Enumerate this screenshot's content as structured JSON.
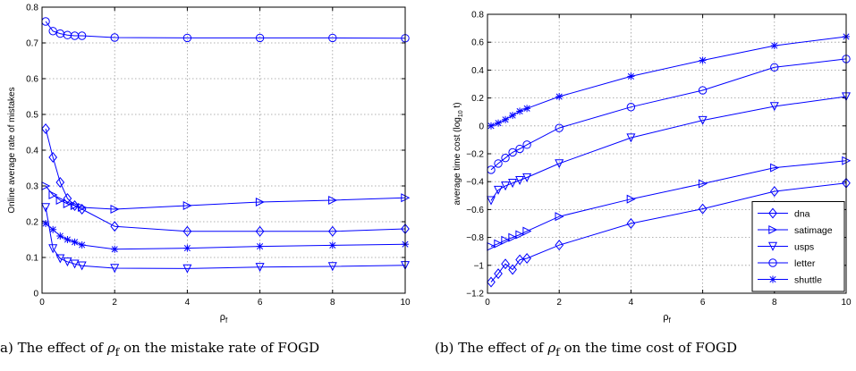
{
  "captions": {
    "a_prefix": "a) The effect of ",
    "a_symbol": "ρ",
    "a_sub": "f",
    "a_suffix": " on the mistake rate of FOGD",
    "b_prefix": "(b) The effect of ",
    "b_symbol": "ρ",
    "b_sub": "f",
    "b_suffix": " on the time cost of FOGD"
  },
  "colors": {
    "series": "#0000ff",
    "grid": "#999999",
    "axis": "#000000"
  },
  "chart_data": [
    {
      "type": "line",
      "title": "",
      "xlabel": "ρ",
      "xlabel_sub": "f",
      "ylabel": "Online average rate of mistakes",
      "xlim": [
        0,
        10
      ],
      "ylim": [
        0,
        0.8
      ],
      "xticks": [
        0,
        2,
        4,
        6,
        8,
        10
      ],
      "yticks": [
        0,
        0.1,
        0.2,
        0.3,
        0.4,
        0.5,
        0.6,
        0.7,
        0.8
      ],
      "ytick_labels": [
        "0",
        "0.1",
        "0.2",
        "0.3",
        "0.4",
        "0.5",
        "0.6",
        "0.7",
        "0.8"
      ],
      "grid": true,
      "legend": null,
      "series": [
        {
          "name": "dna",
          "marker": "diamond",
          "x": [
            0.1,
            0.3,
            0.5,
            0.7,
            0.9,
            1.1,
            2,
            4,
            6,
            8,
            10
          ],
          "y": [
            0.46,
            0.38,
            0.31,
            0.265,
            0.245,
            0.235,
            0.187,
            0.173,
            0.173,
            0.173,
            0.18
          ]
        },
        {
          "name": "satimage",
          "marker": "triangle-right",
          "x": [
            0.1,
            0.3,
            0.5,
            0.7,
            0.9,
            1.1,
            2,
            4,
            6,
            8,
            10
          ],
          "y": [
            0.3,
            0.275,
            0.26,
            0.25,
            0.245,
            0.24,
            0.235,
            0.245,
            0.255,
            0.26,
            0.267
          ]
        },
        {
          "name": "usps",
          "marker": "triangle-down",
          "x": [
            0.1,
            0.3,
            0.5,
            0.7,
            0.9,
            1.1,
            2,
            4,
            6,
            8,
            10
          ],
          "y": [
            0.24,
            0.125,
            0.097,
            0.088,
            0.082,
            0.077,
            0.07,
            0.069,
            0.073,
            0.075,
            0.078
          ]
        },
        {
          "name": "letter",
          "marker": "circle",
          "x": [
            0.1,
            0.3,
            0.5,
            0.7,
            0.9,
            1.1,
            2,
            4,
            6,
            8,
            10
          ],
          "y": [
            0.76,
            0.733,
            0.726,
            0.722,
            0.72,
            0.72,
            0.715,
            0.714,
            0.714,
            0.714,
            0.713
          ]
        },
        {
          "name": "shuttle",
          "marker": "star",
          "x": [
            0.1,
            0.3,
            0.5,
            0.7,
            0.9,
            1.1,
            2,
            4,
            6,
            8,
            10
          ],
          "y": [
            0.195,
            0.178,
            0.16,
            0.15,
            0.143,
            0.135,
            0.123,
            0.126,
            0.131,
            0.134,
            0.137
          ]
        }
      ]
    },
    {
      "type": "line",
      "title": "",
      "xlabel": "ρ",
      "xlabel_sub": "f",
      "ylabel_prefix": "average time cost (log",
      "ylabel_sub": "10",
      "ylabel_suffix": " t)",
      "xlim": [
        0,
        10
      ],
      "ylim": [
        -1.2,
        0.8
      ],
      "xticks": [
        0,
        2,
        4,
        6,
        8,
        10
      ],
      "yticks": [
        -1.2,
        -1,
        -0.8,
        -0.6,
        -0.4,
        -0.2,
        0,
        0.2,
        0.4,
        0.6,
        0.8
      ],
      "ytick_labels": [
        "−1.2",
        "−1",
        "−0.8",
        "−0.6",
        "−0.4",
        "−0.2",
        "0",
        "0.2",
        "0.4",
        "0.6",
        "0.8"
      ],
      "grid": true,
      "legend": "bottom-right",
      "series": [
        {
          "name": "dna",
          "marker": "diamond",
          "x": [
            0.1,
            0.3,
            0.5,
            0.7,
            0.9,
            1.1,
            2,
            4,
            6,
            8,
            10
          ],
          "y": [
            -1.12,
            -1.06,
            -0.99,
            -1.03,
            -0.96,
            -0.95,
            -0.855,
            -0.7,
            -0.595,
            -0.47,
            -0.41
          ]
        },
        {
          "name": "satimage",
          "marker": "triangle-right",
          "x": [
            0.1,
            0.3,
            0.5,
            0.7,
            0.9,
            1.1,
            2,
            4,
            6,
            8,
            10
          ],
          "y": [
            -0.865,
            -0.845,
            -0.82,
            -0.8,
            -0.78,
            -0.755,
            -0.65,
            -0.525,
            -0.415,
            -0.3,
            -0.25
          ]
        },
        {
          "name": "usps",
          "marker": "triangle-down",
          "x": [
            0.1,
            0.3,
            0.5,
            0.7,
            0.9,
            1.1,
            2,
            4,
            6,
            8,
            10
          ],
          "y": [
            -0.535,
            -0.46,
            -0.43,
            -0.41,
            -0.39,
            -0.37,
            -0.27,
            -0.085,
            0.04,
            0.14,
            0.21
          ]
        },
        {
          "name": "letter",
          "marker": "circle",
          "x": [
            0.1,
            0.3,
            0.5,
            0.7,
            0.9,
            1.1,
            2,
            4,
            6,
            8,
            10
          ],
          "y": [
            -0.315,
            -0.27,
            -0.23,
            -0.19,
            -0.165,
            -0.135,
            -0.015,
            0.135,
            0.255,
            0.42,
            0.48
          ]
        },
        {
          "name": "shuttle",
          "marker": "star",
          "x": [
            0.1,
            0.3,
            0.5,
            0.7,
            0.9,
            1.1,
            2,
            4,
            6,
            8,
            10
          ],
          "y": [
            0.0,
            0.02,
            0.045,
            0.075,
            0.105,
            0.125,
            0.21,
            0.355,
            0.47,
            0.575,
            0.64
          ]
        }
      ]
    }
  ]
}
